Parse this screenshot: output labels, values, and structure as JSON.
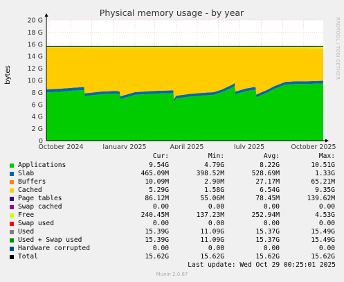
{
  "chart_data": {
    "type": "area",
    "title": "Physical memory usage - by year",
    "ylabel": "bytes",
    "ylim": [
      0,
      20
    ],
    "yticks": [
      "0",
      "2 G",
      "4 G",
      "6 G",
      "8 G",
      "10 G",
      "12 G",
      "14 G",
      "16 G",
      "18 G",
      "20 G"
    ],
    "xticks": [
      "October 2024",
      "January 2025",
      "April 2025",
      "July 2025",
      "October 2025"
    ],
    "x": [
      "2024-09-27",
      "2024-10-15",
      "2024-11-05",
      "2024-11-20",
      "2024-11-21",
      "2024-12-15",
      "2025-01-05",
      "2025-01-10",
      "2025-01-11",
      "2025-02-01",
      "2025-03-01",
      "2025-03-28",
      "2025-03-29",
      "2025-04-01",
      "2025-04-20",
      "2025-05-10",
      "2025-05-25",
      "2025-06-05",
      "2025-06-20",
      "2025-06-24",
      "2025-06-25",
      "2025-07-10",
      "2025-07-20",
      "2025-07-24",
      "2025-07-25",
      "2025-08-10",
      "2025-08-20",
      "2025-09-05",
      "2025-09-20",
      "2025-10-05",
      "2025-10-29"
    ],
    "series": [
      {
        "name": "Applications",
        "color": "#00cc00",
        "values": [
          8.0,
          8.1,
          8.3,
          8.4,
          7.4,
          7.7,
          7.8,
          7.7,
          6.9,
          7.6,
          7.8,
          7.9,
          6.4,
          7.0,
          7.3,
          7.5,
          7.6,
          8.0,
          8.8,
          9.1,
          7.7,
          8.2,
          8.4,
          8.4,
          7.2,
          8.0,
          8.6,
          9.3,
          9.4,
          9.4,
          9.5
        ]
      },
      {
        "name": "Slab",
        "color": "#0066b3",
        "values": [
          0.5,
          0.5,
          0.5,
          0.5,
          0.45,
          0.45,
          0.45,
          0.45,
          0.45,
          0.45,
          0.45,
          0.45,
          0.45,
          0.45,
          0.45,
          0.45,
          0.45,
          0.45,
          0.45,
          0.45,
          0.45,
          0.45,
          0.45,
          0.45,
          0.45,
          0.45,
          0.45,
          0.45,
          0.45,
          0.45,
          0.45
        ]
      },
      {
        "name": "Cached",
        "color": "#ffcc00",
        "values": [
          6.9,
          6.8,
          6.6,
          6.5,
          7.5,
          7.2,
          7.1,
          7.2,
          8.0,
          7.3,
          7.1,
          7.0,
          8.5,
          7.9,
          7.6,
          7.4,
          7.3,
          6.9,
          6.1,
          5.8,
          7.2,
          6.7,
          6.5,
          6.5,
          7.7,
          6.9,
          6.3,
          5.6,
          5.5,
          5.5,
          5.3
        ]
      },
      {
        "name": "Free",
        "color": "#ccff00",
        "values": [
          0.2,
          0.2,
          0.2,
          0.2,
          0.25,
          0.25,
          0.25,
          0.25,
          0.25,
          0.25,
          0.25,
          0.25,
          0.25,
          0.25,
          0.25,
          0.25,
          0.25,
          0.25,
          0.25,
          0.25,
          0.25,
          0.25,
          0.25,
          0.25,
          0.25,
          0.25,
          0.25,
          0.25,
          0.25,
          0.25,
          0.25
        ]
      }
    ],
    "total": 15.62,
    "legend": {
      "headers": [
        "Cur:",
        "Min:",
        "Avg:",
        "Max:"
      ],
      "rows": [
        {
          "name": "Applications",
          "color": "#00cc00",
          "cur": "9.54G",
          "min": "4.79G",
          "avg": "8.22G",
          "max": "10.51G"
        },
        {
          "name": "Slab",
          "color": "#0066b3",
          "cur": "465.09M",
          "min": "398.52M",
          "avg": "528.69M",
          "max": "1.33G"
        },
        {
          "name": "Buffers",
          "color": "#ff8000",
          "cur": "10.09M",
          "min": "2.90M",
          "avg": "27.17M",
          "max": "65.21M"
        },
        {
          "name": "Cached",
          "color": "#ffcc00",
          "cur": "5.29G",
          "min": "1.58G",
          "avg": "6.54G",
          "max": "9.35G"
        },
        {
          "name": "Page tables",
          "color": "#330099",
          "cur": "86.12M",
          "min": "55.06M",
          "avg": "78.45M",
          "max": "139.62M"
        },
        {
          "name": "Swap cached",
          "color": "#990099",
          "cur": "0.00",
          "min": "0.00",
          "avg": "0.00",
          "max": "0.00"
        },
        {
          "name": "Free",
          "color": "#ccff00",
          "cur": "240.45M",
          "min": "137.23M",
          "avg": "252.94M",
          "max": "4.53G"
        },
        {
          "name": "Swap used",
          "color": "#ff0000",
          "cur": "0.00",
          "min": "0.00",
          "avg": "0.00",
          "max": "0.00"
        },
        {
          "name": "Used",
          "color": "#808080",
          "cur": "15.39G",
          "min": "11.09G",
          "avg": "15.37G",
          "max": "15.49G"
        },
        {
          "name": "Used + Swap used",
          "color": "#008f00",
          "cur": "15.39G",
          "min": "11.09G",
          "avg": "15.37G",
          "max": "15.49G"
        },
        {
          "name": "Hardware corrupted",
          "color": "#00487d",
          "cur": "0.00",
          "min": "0.00",
          "avg": "0.00",
          "max": "0.00"
        },
        {
          "name": "Total",
          "color": "#000000",
          "cur": "15.62G",
          "min": "15.62G",
          "avg": "15.62G",
          "max": "15.62G"
        }
      ]
    },
    "side_label": "RRDTOOL / TOBI OETIKER",
    "last_update": "Last update: Wed Oct 29 00:25:01 2025",
    "version": "Munin 2.0.67"
  }
}
